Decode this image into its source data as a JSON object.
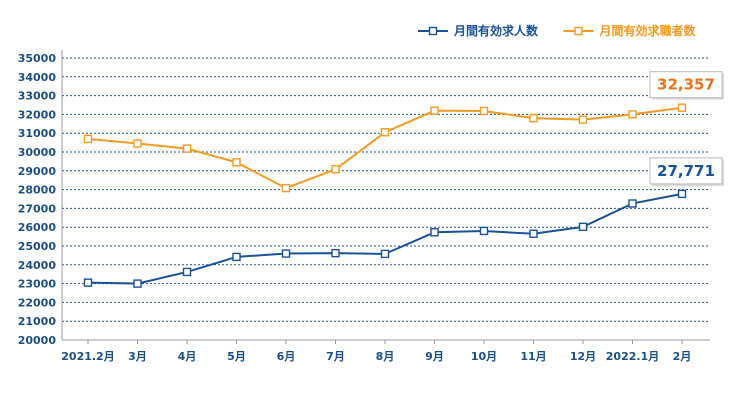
{
  "chart_data": {
    "type": "line",
    "categories": [
      "2021.2月",
      "3月",
      "4月",
      "5月",
      "6月",
      "7月",
      "8月",
      "9月",
      "10月",
      "11月",
      "12月",
      "2022.1月",
      "2月"
    ],
    "series": [
      {
        "name": "月間有効求人数",
        "color": "#1a5296",
        "values": [
          23050,
          23000,
          23620,
          24420,
          24600,
          24620,
          24580,
          25730,
          25800,
          25650,
          26020,
          27260,
          27771
        ]
      },
      {
        "name": "月間有効求職者数",
        "color": "#f39a1f",
        "values": [
          30700,
          30450,
          30180,
          29450,
          28080,
          29080,
          31050,
          32200,
          32180,
          31800,
          31720,
          32000,
          32357
        ]
      }
    ],
    "ylim": [
      20000,
      35000
    ],
    "ytick_step": 1000,
    "grid": true,
    "legend_position": "top-right",
    "marker": "hollow-square"
  },
  "callouts": [
    {
      "series": 1,
      "text": "32,357",
      "color": "#e8731a"
    },
    {
      "series": 0,
      "text": "27,771",
      "color": "#1a5296"
    }
  ],
  "styles": {
    "axis_label_color": "#1a4f86",
    "grid_color": "#1a5296"
  }
}
